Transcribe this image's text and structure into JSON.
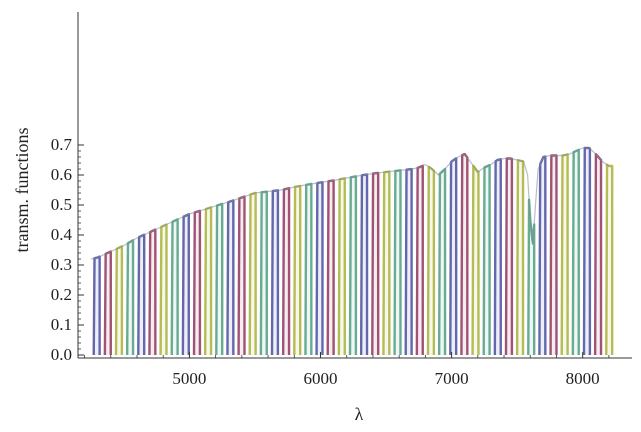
{
  "chart_data": {
    "type": "area",
    "title": "",
    "xlabel": "λ",
    "ylabel": "transm. functions",
    "xlim": [
      4150,
      8300
    ],
    "ylim": [
      0.0,
      0.75
    ],
    "xticks": [
      5000,
      6000,
      7000,
      8000
    ],
    "yticks": [
      0.0,
      0.1,
      0.2,
      0.3,
      0.4,
      0.5,
      0.6,
      0.7
    ],
    "xtick_labels": [
      "5000",
      "6000",
      "7000",
      "8000"
    ],
    "ytick_labels": [
      "0.0",
      "0.1",
      "0.2",
      "0.3",
      "0.4",
      "0.5",
      "0.6",
      "0.7"
    ],
    "grid": false,
    "legend": "none",
    "series_colors": [
      "#5b5fa8",
      "#9b4a6e",
      "#b0b84a",
      "#5fa88c"
    ],
    "filter_width": 45,
    "filter_start": 4270,
    "filter_step": 85,
    "filter_count": 47,
    "envelope": {
      "x": [
        4250,
        4300,
        4400,
        4500,
        4600,
        4700,
        4800,
        4900,
        5000,
        5100,
        5200,
        5300,
        5400,
        5500,
        5600,
        5700,
        5800,
        5900,
        6000,
        6100,
        6200,
        6300,
        6400,
        6500,
        6600,
        6700,
        6750,
        6800,
        6850,
        6900,
        6950,
        7000,
        7050,
        7100,
        7150,
        7200,
        7250,
        7300,
        7350,
        7400,
        7450,
        7500,
        7550,
        7580,
        7600,
        7620,
        7640,
        7660,
        7700,
        7750,
        7800,
        7850,
        7900,
        7950,
        8000,
        8050,
        8100,
        8150,
        8200
      ],
      "y": [
        0.32,
        0.325,
        0.345,
        0.365,
        0.39,
        0.41,
        0.43,
        0.45,
        0.47,
        0.483,
        0.497,
        0.51,
        0.525,
        0.54,
        0.545,
        0.55,
        0.56,
        0.568,
        0.575,
        0.582,
        0.59,
        0.598,
        0.605,
        0.61,
        0.615,
        0.62,
        0.625,
        0.635,
        0.62,
        0.6,
        0.62,
        0.645,
        0.66,
        0.67,
        0.64,
        0.61,
        0.625,
        0.635,
        0.65,
        0.655,
        0.655,
        0.65,
        0.645,
        0.6,
        0.45,
        0.37,
        0.5,
        0.62,
        0.66,
        0.665,
        0.665,
        0.665,
        0.67,
        0.68,
        0.69,
        0.69,
        0.67,
        0.645,
        0.63
      ]
    }
  }
}
